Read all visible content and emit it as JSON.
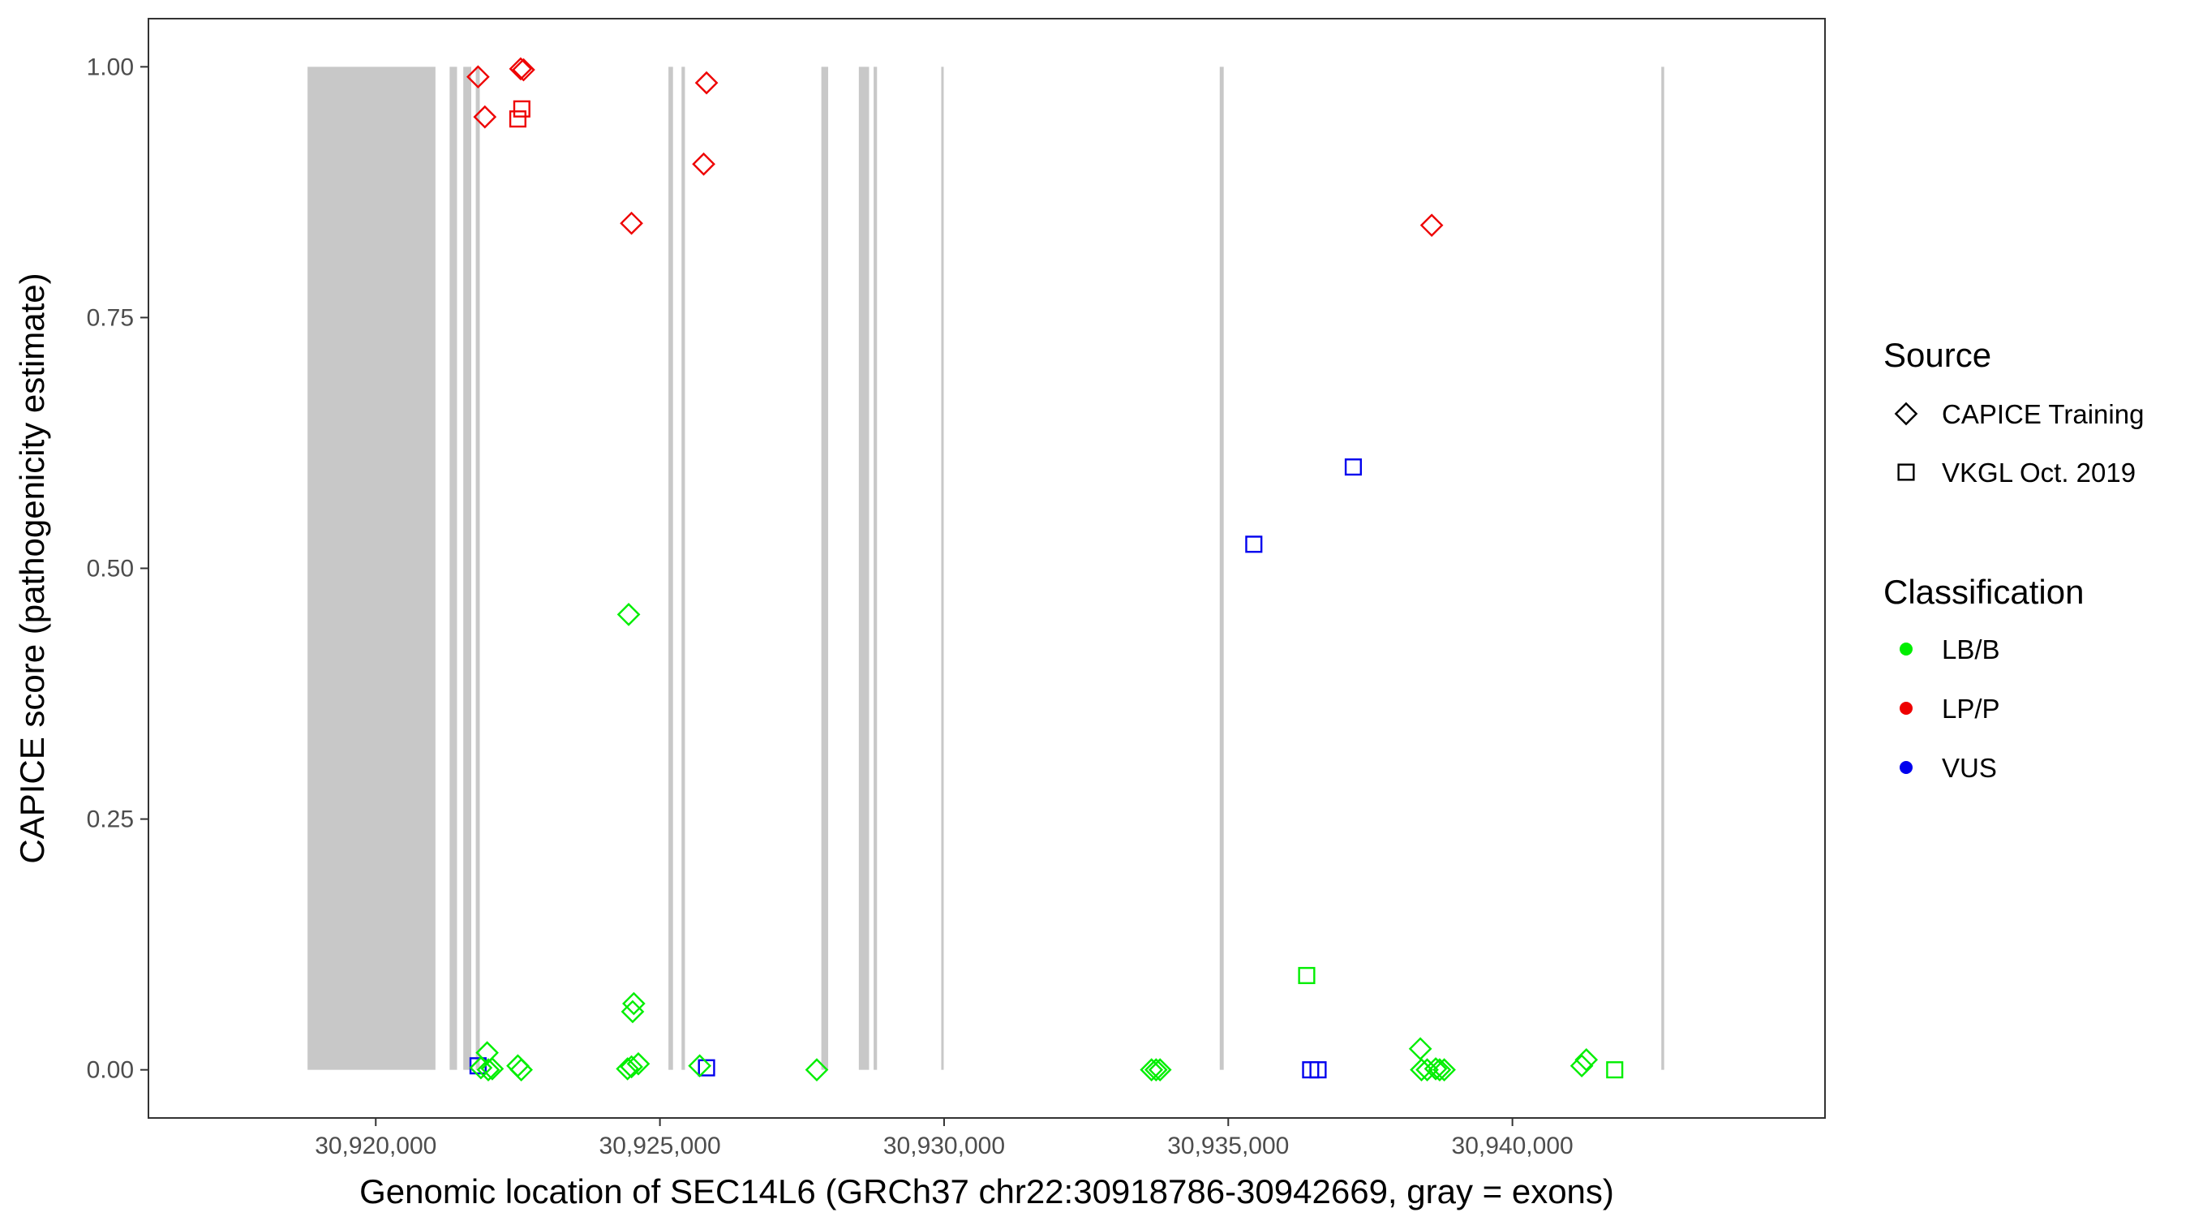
{
  "chart_data": {
    "type": "scatter",
    "title": "",
    "xlabel": "Genomic location of SEC14L6 (GRCh37 chr22:30918786-30942669, gray = exons)",
    "ylabel": "CAPICE score (pathogenicity estimate)",
    "xlim": [
      30916000,
      30945500
    ],
    "ylim": [
      -0.048,
      1.048
    ],
    "x_ticks": [
      30920000,
      30925000,
      30930000,
      30935000,
      30940000
    ],
    "x_tick_labels": [
      "30,920,000",
      "30,925,000",
      "30,930,000",
      "30,935,000",
      "30,940,000"
    ],
    "y_ticks": [
      0,
      0.25,
      0.5,
      0.75,
      1.0
    ],
    "y_tick_labels": [
      "0.00",
      "0.25",
      "0.50",
      "0.75",
      "1.00"
    ],
    "grid": false,
    "exon_color": "#c8c8c8",
    "exons": [
      [
        30918800,
        30921050
      ],
      [
        30921300,
        30921430
      ],
      [
        30921540,
        30921680
      ],
      [
        30921760,
        30921830
      ],
      [
        30925150,
        30925230
      ],
      [
        30925380,
        30925440
      ],
      [
        30927840,
        30927960
      ],
      [
        30928500,
        30928680
      ],
      [
        30928760,
        30928820
      ],
      [
        30929950,
        30929990
      ],
      [
        30934850,
        30934920
      ],
      [
        30942620,
        30942670
      ]
    ],
    "legend_placement": "right",
    "legend": {
      "source_title": "Source",
      "source_items": [
        {
          "label": "CAPICE Training",
          "shape": "diamond"
        },
        {
          "label": "VKGL Oct. 2019",
          "shape": "square"
        }
      ],
      "classification_title": "Classification",
      "classification_items": [
        {
          "label": "LB/B",
          "color": "#00ee00"
        },
        {
          "label": "LP/P",
          "color": "#ee0000"
        },
        {
          "label": "VUS",
          "color": "#0000ee"
        }
      ]
    },
    "colors": {
      "LB/B": "#00ee00",
      "LP/P": "#ee0000",
      "VUS": "#0000ee"
    },
    "points": [
      {
        "x": 30921800,
        "y": 0.99,
        "source": "CAPICE Training",
        "class": "LP/P"
      },
      {
        "x": 30921920,
        "y": 0.95,
        "source": "CAPICE Training",
        "class": "LP/P"
      },
      {
        "x": 30922550,
        "y": 0.998,
        "source": "CAPICE Training",
        "class": "LP/P"
      },
      {
        "x": 30922600,
        "y": 0.997,
        "source": "CAPICE Training",
        "class": "LP/P"
      },
      {
        "x": 30922500,
        "y": 0.948,
        "source": "VKGL Oct. 2019",
        "class": "LP/P"
      },
      {
        "x": 30922570,
        "y": 0.958,
        "source": "VKGL Oct. 2019",
        "class": "LP/P"
      },
      {
        "x": 30925820,
        "y": 0.984,
        "source": "CAPICE Training",
        "class": "LP/P"
      },
      {
        "x": 30925770,
        "y": 0.903,
        "source": "CAPICE Training",
        "class": "LP/P"
      },
      {
        "x": 30924500,
        "y": 0.844,
        "source": "CAPICE Training",
        "class": "LP/P"
      },
      {
        "x": 30938580,
        "y": 0.842,
        "source": "CAPICE Training",
        "class": "LP/P"
      },
      {
        "x": 30937200,
        "y": 0.601,
        "source": "VKGL Oct. 2019",
        "class": "VUS"
      },
      {
        "x": 30935450,
        "y": 0.524,
        "source": "VKGL Oct. 2019",
        "class": "VUS"
      },
      {
        "x": 30921800,
        "y": 0.004,
        "source": "VKGL Oct. 2019",
        "class": "VUS"
      },
      {
        "x": 30925820,
        "y": 0.002,
        "source": "VKGL Oct. 2019",
        "class": "VUS"
      },
      {
        "x": 30936450,
        "y": 0.0,
        "source": "VKGL Oct. 2019",
        "class": "VUS"
      },
      {
        "x": 30936580,
        "y": 0.0,
        "source": "VKGL Oct. 2019",
        "class": "VUS"
      },
      {
        "x": 30924450,
        "y": 0.454,
        "source": "CAPICE Training",
        "class": "LB/B"
      },
      {
        "x": 30936380,
        "y": 0.094,
        "source": "VKGL Oct. 2019",
        "class": "LB/B"
      },
      {
        "x": 30924540,
        "y": 0.066,
        "source": "CAPICE Training",
        "class": "LB/B"
      },
      {
        "x": 30924520,
        "y": 0.058,
        "source": "CAPICE Training",
        "class": "LB/B"
      },
      {
        "x": 30938380,
        "y": 0.021,
        "source": "CAPICE Training",
        "class": "LB/B"
      },
      {
        "x": 30921960,
        "y": 0.017,
        "source": "CAPICE Training",
        "class": "LB/B"
      },
      {
        "x": 30941300,
        "y": 0.01,
        "source": "CAPICE Training",
        "class": "LB/B"
      },
      {
        "x": 30941220,
        "y": 0.004,
        "source": "CAPICE Training",
        "class": "LB/B"
      },
      {
        "x": 30921850,
        "y": 0.002,
        "source": "CAPICE Training",
        "class": "LB/B"
      },
      {
        "x": 30921980,
        "y": 0.0,
        "source": "CAPICE Training",
        "class": "LB/B"
      },
      {
        "x": 30922050,
        "y": 0.001,
        "source": "CAPICE Training",
        "class": "LB/B"
      },
      {
        "x": 30922500,
        "y": 0.004,
        "source": "CAPICE Training",
        "class": "LB/B"
      },
      {
        "x": 30922560,
        "y": 0.0,
        "source": "CAPICE Training",
        "class": "LB/B"
      },
      {
        "x": 30924430,
        "y": 0.001,
        "source": "CAPICE Training",
        "class": "LB/B"
      },
      {
        "x": 30924500,
        "y": 0.003,
        "source": "CAPICE Training",
        "class": "LB/B"
      },
      {
        "x": 30924620,
        "y": 0.006,
        "source": "CAPICE Training",
        "class": "LB/B"
      },
      {
        "x": 30925700,
        "y": 0.004,
        "source": "CAPICE Training",
        "class": "LB/B"
      },
      {
        "x": 30927760,
        "y": 0.0,
        "source": "CAPICE Training",
        "class": "LB/B"
      },
      {
        "x": 30933650,
        "y": 0.0,
        "source": "CAPICE Training",
        "class": "LB/B"
      },
      {
        "x": 30933730,
        "y": 0.0,
        "source": "CAPICE Training",
        "class": "LB/B"
      },
      {
        "x": 30933800,
        "y": 0.0,
        "source": "CAPICE Training",
        "class": "LB/B"
      },
      {
        "x": 30938400,
        "y": 0.0,
        "source": "CAPICE Training",
        "class": "LB/B"
      },
      {
        "x": 30938500,
        "y": 0.0,
        "source": "CAPICE Training",
        "class": "LB/B"
      },
      {
        "x": 30938650,
        "y": 0.001,
        "source": "CAPICE Training",
        "class": "LB/B"
      },
      {
        "x": 30938720,
        "y": 0.0,
        "source": "CAPICE Training",
        "class": "LB/B"
      },
      {
        "x": 30938800,
        "y": 0.0,
        "source": "CAPICE Training",
        "class": "LB/B"
      },
      {
        "x": 30941800,
        "y": 0.0,
        "source": "VKGL Oct. 2019",
        "class": "LB/B"
      }
    ]
  }
}
